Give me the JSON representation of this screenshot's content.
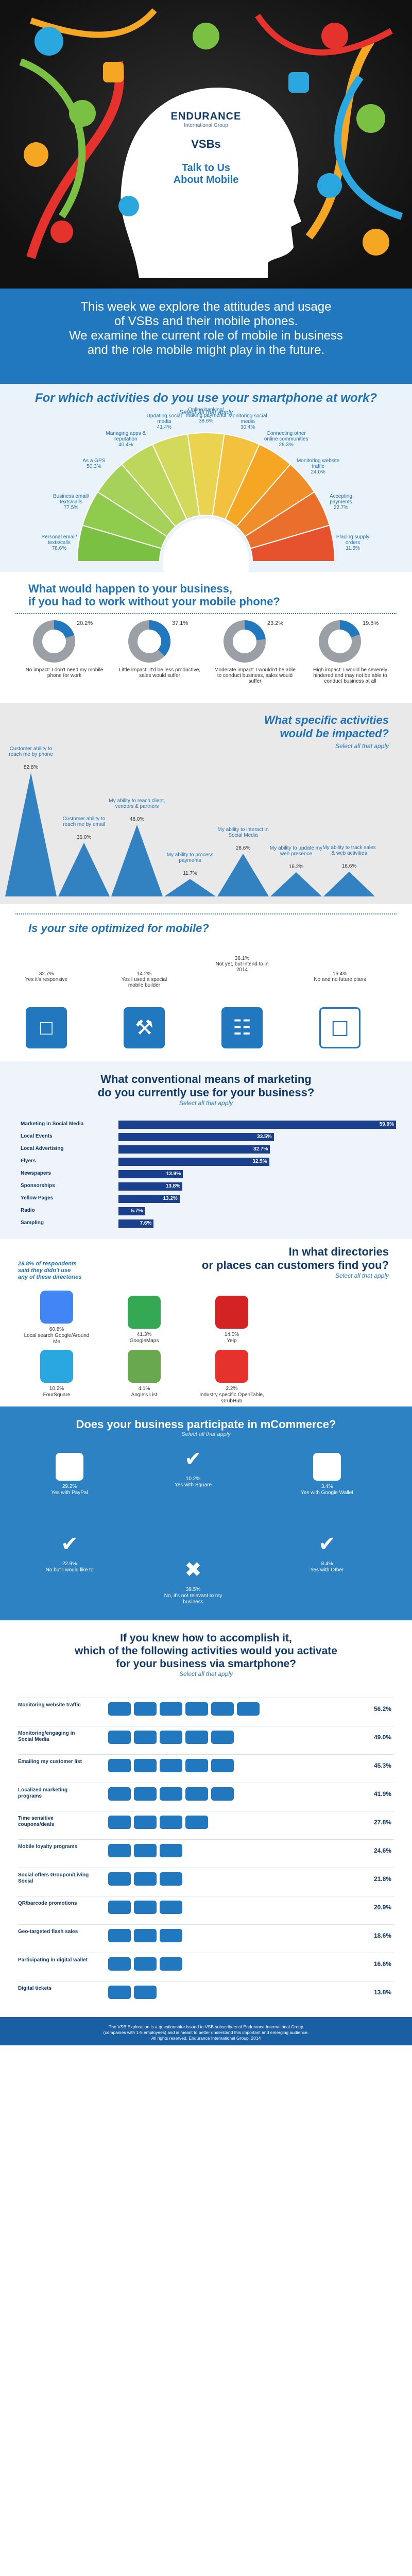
{
  "hero": {
    "brand": "ENDURANCE",
    "brand_sub": "International Group",
    "vsbs": "VSBs",
    "talk": "Talk to Us",
    "about": "About Mobile",
    "intro_1": "This week we explore the attitudes and usage",
    "intro_2": "of VSBs and their mobile phones.",
    "intro_3": "We examine the current role of mobile in business",
    "intro_4": "and the role mobile might play in the future."
  },
  "use": {
    "title": "For which activities do you use your smartphone at work?",
    "sub": "Select all that apply",
    "items": [
      {
        "label": "Personal email/ texts/calls",
        "pct": "78.6%"
      },
      {
        "label": "Business email/ texts/calls",
        "pct": "77.5%"
      },
      {
        "label": "As a GPS",
        "pct": "50.3%"
      },
      {
        "label": "Managing apps & reputation",
        "pct": "40.4%"
      },
      {
        "label": "Updating social media",
        "pct": "41.4%"
      },
      {
        "label": "Online banking/ making payments",
        "pct": "38.6%"
      },
      {
        "label": "Monitoring social media",
        "pct": "30.4%"
      },
      {
        "label": "Connecting other online communities",
        "pct": "28.3%"
      },
      {
        "label": "Monitoring website traffic",
        "pct": "24.0%"
      },
      {
        "label": "Accepting payments",
        "pct": "22.7%"
      },
      {
        "label": "Placing supply orders",
        "pct": "11.5%"
      }
    ]
  },
  "without": {
    "title_1": "What would happen to your business,",
    "title_2": "if you had to work without your mobile phone?",
    "items": [
      {
        "pct": "20.2%",
        "value": 20.2,
        "label": "No impact: I don't need my mobile phone for work"
      },
      {
        "pct": "37.1%",
        "value": 37.1,
        "label": "Little impact: It'd be less productive, sales would suffer"
      },
      {
        "pct": "23.2%",
        "value": 23.2,
        "label": "Moderate impact: I wouldn't be able to conduct business, sales would suffer"
      },
      {
        "pct": "19.5%",
        "value": 19.5,
        "label": "High impact: I would be severely hindered and may not be able to conduct business at all"
      }
    ]
  },
  "impacted": {
    "title_1": "What specific activities",
    "title_2": "would be impacted?",
    "sub": "Select all that apply",
    "items": [
      {
        "label": "Customer ability to reach me by phone",
        "pct": "82.8%",
        "value": 82.8
      },
      {
        "label": "Customer ability to reach me by email",
        "pct": "36.0%",
        "value": 36.0
      },
      {
        "label": "My ability to reach client, vendors & partners",
        "pct": "48.0%",
        "value": 48.0
      },
      {
        "label": "My ability to process payments",
        "pct": "11.7%",
        "value": 11.7
      },
      {
        "label": "My ability to interact in Social Media",
        "pct": "28.6%",
        "value": 28.6
      },
      {
        "label": "My ability to update my web presence",
        "pct": "16.2%",
        "value": 16.2
      },
      {
        "label": "My ability to track sales & web activities",
        "pct": "16.6%",
        "value": 16.6
      }
    ]
  },
  "optimized": {
    "title": "Is your site optimized for mobile?",
    "items": [
      {
        "pct": "32.7%",
        "label": "Yes it's responsive"
      },
      {
        "pct": "14.2%",
        "label": "Yes I used a special mobile builder"
      },
      {
        "pct": "36.1%",
        "label": "Not yet, but intend to in 2014"
      },
      {
        "pct": "16.4%",
        "label": "No and no future plans"
      }
    ]
  },
  "marketing": {
    "title_1": "What conventional means of marketing",
    "title_2": "do you currently use for your business?",
    "sub": "Select all that apply",
    "items": [
      {
        "label": "Marketing in Social Media",
        "pct": "59.9%",
        "value": 59.9
      },
      {
        "label": "Local Events",
        "pct": "33.5%",
        "value": 33.5
      },
      {
        "label": "Local Advertising",
        "pct": "32.7%",
        "value": 32.7
      },
      {
        "label": "Flyers",
        "pct": "32.5%",
        "value": 32.5
      },
      {
        "label": "Newspapers",
        "pct": "13.9%",
        "value": 13.9
      },
      {
        "label": "Sponsorships",
        "pct": "13.8%",
        "value": 13.8
      },
      {
        "label": "Yellow Pages",
        "pct": "13.2%",
        "value": 13.2
      },
      {
        "label": "Radio",
        "pct": "5.7%",
        "value": 5.7
      },
      {
        "label": "Sampling",
        "pct": "7.6%",
        "value": 7.6
      }
    ]
  },
  "dirs": {
    "title_1": "In what directories",
    "title_2": "or places can customers find you?",
    "sub": "Select all that apply",
    "note_1": "29.8% of respondents",
    "note_2": "said they didn't use",
    "note_3": "any of these directories",
    "items": [
      {
        "pct": "60.8%",
        "label": "Local search Google/Around Me"
      },
      {
        "pct": "41.3%",
        "label": "GoogleMaps"
      },
      {
        "pct": "14.0%",
        "label": "Yelp"
      },
      {
        "pct": "10.2%",
        "label": "FourSquare"
      },
      {
        "pct": "4.1%",
        "label": "Angie's List"
      },
      {
        "pct": "2.2%",
        "label": "Industry specific OpenTable, GrubHub"
      }
    ]
  },
  "mcom": {
    "title": "Does your business participate in mCommerce?",
    "sub": "Select all that apply",
    "items": [
      {
        "pct": "29.2%",
        "label": "Yes with PayPal"
      },
      {
        "pct": "10.2%",
        "label": "Yes with Square"
      },
      {
        "pct": "3.4%",
        "label": "Yes with Google Wallet"
      },
      {
        "pct": "22.9%",
        "label": "No but I would like to"
      },
      {
        "pct": "8.4%",
        "label": "Yes with Other"
      },
      {
        "pct": "39.5%",
        "label": "No, it's not relevant to my business"
      }
    ]
  },
  "activate": {
    "title_1": "If you knew how to accomplish it,",
    "title_2": "which of the following activities would you activate",
    "title_3": "for your business via smartphone?",
    "sub": "Select all that apply",
    "items": [
      {
        "label": "Monitoring website traffic",
        "pct": "56.2%"
      },
      {
        "label": "Monitoring/engaging in Social Media",
        "pct": "49.0%"
      },
      {
        "label": "Emailing my customer list",
        "pct": "45.3%"
      },
      {
        "label": "Localized marketing programs",
        "pct": "41.9%"
      },
      {
        "label": "Time sensitive coupons/deals",
        "pct": "27.8%"
      },
      {
        "label": "Mobile loyalty programs",
        "pct": "24.6%"
      },
      {
        "label": "Social offers Groupon/Living Social",
        "pct": "21.8%"
      },
      {
        "label": "QR/barcode promotions",
        "pct": "20.9%"
      },
      {
        "label": "Geo-targeted flash sales",
        "pct": "18.6%"
      },
      {
        "label": "Participating in digital wallet",
        "pct": "16.6%"
      },
      {
        "label": "Digital tickets",
        "pct": "13.8%"
      }
    ]
  },
  "footer": {
    "line_1": "The VSB Exploration is a questionnaire issued to VSB subscribers of Endurance International Group",
    "line_2": "(companies with 1-5 employees) and is meant to better understand this important and emerging audience.",
    "line_3": "All rights reserved, Endurance International Group, 2014"
  },
  "colors": {
    "primary": "#2278be",
    "navy": "#113a6b",
    "bar": "#1a3f8f"
  }
}
